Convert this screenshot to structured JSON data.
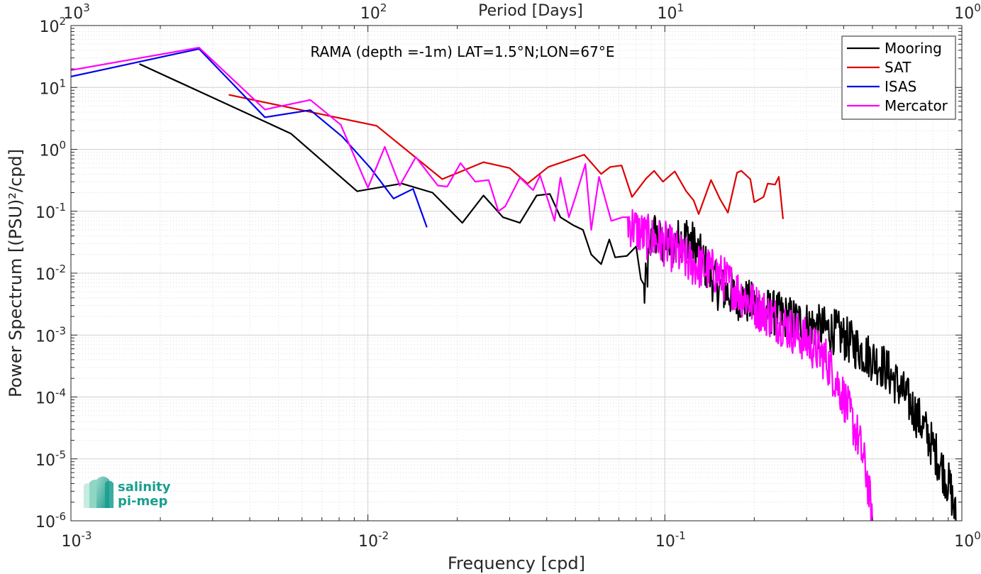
{
  "chart_data": {
    "type": "line",
    "title": "RAMA (depth =-1m) LAT=1.5°N;LON=67°E",
    "xlabel": "Frequency [cpd]",
    "ylabel": "Power Spectrum [(PSU)²/cpd]",
    "top_xlabel": "Period [Days]",
    "x_scale": "log",
    "y_scale": "log",
    "xlim": [
      0.001,
      1
    ],
    "ylim": [
      1e-06,
      100
    ],
    "grid": true,
    "legend_position": "top-right",
    "x_ticks": [
      {
        "base": "10",
        "exp": "-3"
      },
      {
        "base": "10",
        "exp": "-2"
      },
      {
        "base": "10",
        "exp": "-1"
      },
      {
        "base": "10",
        "exp": "0"
      }
    ],
    "top_ticks": [
      {
        "base": "10",
        "exp": "3"
      },
      {
        "base": "10",
        "exp": "2"
      },
      {
        "base": "10",
        "exp": "1"
      },
      {
        "base": "10",
        "exp": "0"
      }
    ],
    "y_ticks": [
      {
        "base": "10",
        "exp": "2"
      },
      {
        "base": "10",
        "exp": "1"
      },
      {
        "base": "10",
        "exp": "0"
      },
      {
        "base": "10",
        "exp": "-1"
      },
      {
        "base": "10",
        "exp": "-2"
      },
      {
        "base": "10",
        "exp": "-3"
      },
      {
        "base": "10",
        "exp": "-4"
      },
      {
        "base": "10",
        "exp": "-5"
      },
      {
        "base": "10",
        "exp": "-6"
      }
    ],
    "series": [
      {
        "name": "Mooring",
        "color": "#000000",
        "noisy_tail": true,
        "points": [
          [
            0.0017,
            24
          ],
          [
            0.0055,
            1.8
          ],
          [
            0.0092,
            0.21
          ],
          [
            0.013,
            0.28
          ],
          [
            0.0165,
            0.2
          ],
          [
            0.0208,
            0.065
          ],
          [
            0.0245,
            0.18
          ],
          [
            0.0285,
            0.08
          ],
          [
            0.0325,
            0.065
          ],
          [
            0.037,
            0.18
          ],
          [
            0.041,
            0.19
          ],
          [
            0.0445,
            0.08
          ],
          [
            0.049,
            0.06
          ],
          [
            0.053,
            0.05
          ],
          [
            0.0565,
            0.02
          ],
          [
            0.061,
            0.014
          ],
          [
            0.065,
            0.035
          ],
          [
            0.068,
            0.018
          ],
          [
            0.0745,
            0.019
          ],
          [
            0.08,
            0.027
          ],
          [
            0.083,
            0.008
          ],
          [
            0.0855,
            0.0045
          ],
          [
            0.091,
            0.05
          ],
          [
            0.1,
            0.025
          ],
          [
            0.12,
            0.04
          ],
          [
            0.15,
            0.006
          ],
          [
            0.2,
            0.003
          ],
          [
            0.25,
            0.002
          ],
          [
            0.3,
            0.0015
          ],
          [
            0.38,
            0.0011
          ],
          [
            0.45,
            0.0006
          ],
          [
            0.55,
            0.0003
          ],
          [
            0.65,
            0.0001
          ],
          [
            0.75,
            3e-05
          ],
          [
            0.85,
            8e-06
          ],
          [
            0.92,
            3e-06
          ],
          [
            0.96,
            9e-07
          ]
        ]
      },
      {
        "name": "SAT",
        "color": "#dd0000",
        "noisy_tail": false,
        "points": [
          [
            0.0034,
            7.6
          ],
          [
            0.0107,
            2.4
          ],
          [
            0.0178,
            0.33
          ],
          [
            0.0245,
            0.62
          ],
          [
            0.03,
            0.5
          ],
          [
            0.0345,
            0.28
          ],
          [
            0.0405,
            0.52
          ],
          [
            0.0535,
            0.82
          ],
          [
            0.061,
            0.4
          ],
          [
            0.0655,
            0.52
          ],
          [
            0.0715,
            0.55
          ],
          [
            0.0775,
            0.17
          ],
          [
            0.0865,
            0.34
          ],
          [
            0.092,
            0.45
          ],
          [
            0.0985,
            0.3
          ],
          [
            0.108,
            0.44
          ],
          [
            0.118,
            0.21
          ],
          [
            0.125,
            0.15
          ],
          [
            0.13,
            0.09
          ],
          [
            0.143,
            0.32
          ],
          [
            0.153,
            0.16
          ],
          [
            0.163,
            0.095
          ],
          [
            0.175,
            0.42
          ],
          [
            0.181,
            0.45
          ],
          [
            0.194,
            0.33
          ],
          [
            0.2,
            0.14
          ],
          [
            0.215,
            0.17
          ],
          [
            0.222,
            0.28
          ],
          [
            0.235,
            0.27
          ],
          [
            0.242,
            0.36
          ],
          [
            0.25,
            0.075
          ]
        ]
      },
      {
        "name": "ISAS",
        "color": "#0000ee",
        "noisy_tail": false,
        "points": [
          [
            0.001,
            15
          ],
          [
            0.0027,
            42
          ],
          [
            0.0045,
            3.3
          ],
          [
            0.0064,
            4.3
          ],
          [
            0.0082,
            1.6
          ],
          [
            0.0102,
            0.5
          ],
          [
            0.0122,
            0.16
          ],
          [
            0.0142,
            0.23
          ],
          [
            0.0158,
            0.055
          ]
        ]
      },
      {
        "name": "Mercator",
        "color": "#ff00ff",
        "noisy_tail": true,
        "points": [
          [
            0.001,
            19
          ],
          [
            0.0027,
            44
          ],
          [
            0.0045,
            4.4
          ],
          [
            0.0064,
            6.3
          ],
          [
            0.0081,
            2.5
          ],
          [
            0.01,
            0.24
          ],
          [
            0.0114,
            1.1
          ],
          [
            0.0128,
            0.26
          ],
          [
            0.0145,
            0.75
          ],
          [
            0.0172,
            0.26
          ],
          [
            0.0185,
            0.25
          ],
          [
            0.0205,
            0.6
          ],
          [
            0.023,
            0.3
          ],
          [
            0.0255,
            0.32
          ],
          [
            0.0275,
            0.1
          ],
          [
            0.029,
            0.12
          ],
          [
            0.0325,
            0.35
          ],
          [
            0.036,
            0.22
          ],
          [
            0.038,
            0.38
          ],
          [
            0.0425,
            0.07
          ],
          [
            0.0445,
            0.35
          ],
          [
            0.0475,
            0.08
          ],
          [
            0.05,
            0.17
          ],
          [
            0.054,
            0.58
          ],
          [
            0.0565,
            0.05
          ],
          [
            0.06,
            0.36
          ],
          [
            0.066,
            0.07
          ],
          [
            0.072,
            0.08
          ],
          [
            0.085,
            0.04
          ],
          [
            0.1,
            0.03
          ],
          [
            0.12,
            0.015
          ],
          [
            0.15,
            0.01
          ],
          [
            0.2,
            0.003
          ],
          [
            0.25,
            0.0015
          ],
          [
            0.3,
            0.0008
          ],
          [
            0.35,
            0.0004
          ],
          [
            0.4,
            0.0001
          ],
          [
            0.45,
            2e-05
          ],
          [
            0.48,
            5e-06
          ],
          [
            0.5,
            9e-07
          ]
        ]
      }
    ]
  }
}
